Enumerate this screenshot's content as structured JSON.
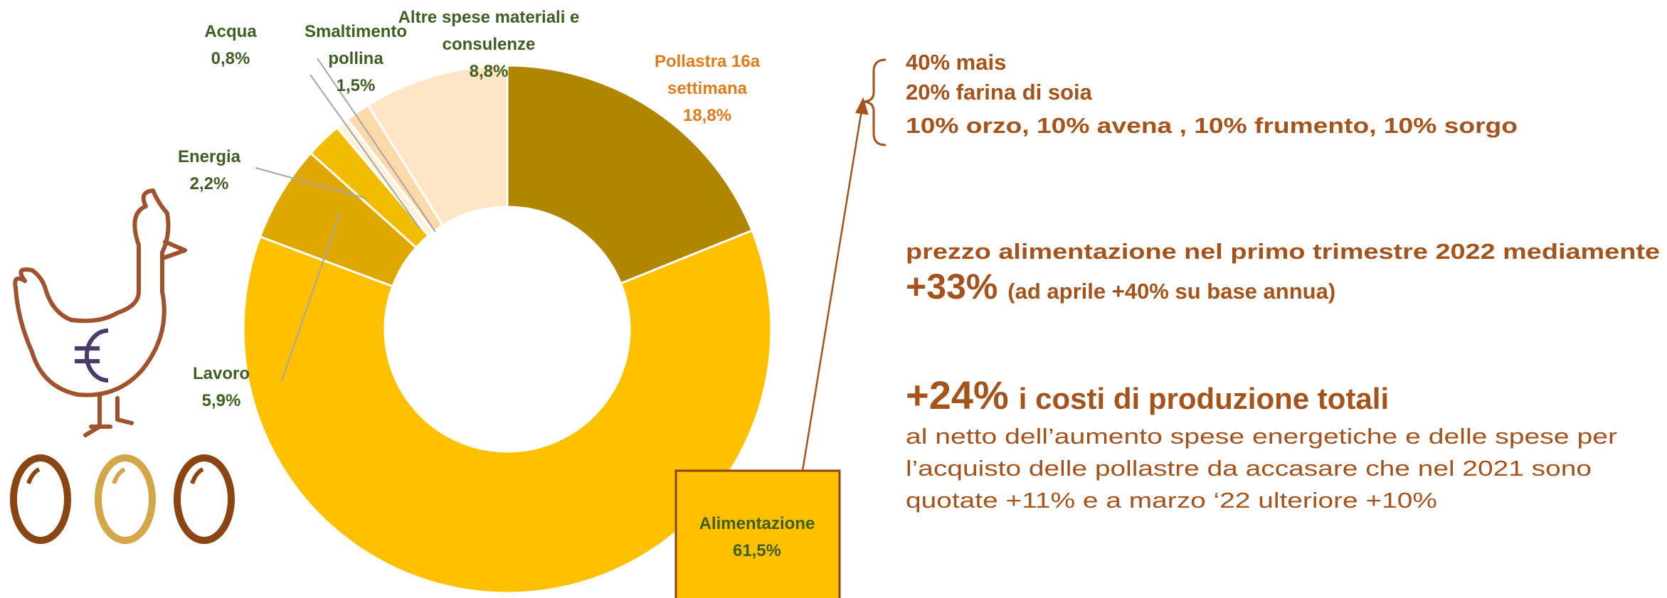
{
  "chart_data": {
    "type": "pie",
    "categories": [
      "Pollastra 16a settimana",
      "Alimentazione",
      "Lavoro",
      "Energia",
      "Acqua",
      "Smaltimento pollina",
      "Altre spese materiali e consulenze"
    ],
    "values": [
      18.8,
      61.5,
      5.9,
      2.2,
      0.8,
      1.5,
      8.8
    ],
    "value_labels": [
      "18,8%",
      "61,5%",
      "5,9%",
      "2,2%",
      "0,8%",
      "1,5%",
      "8,8%"
    ],
    "colors": [
      "#B08500",
      "#FFC000",
      "#DEA800",
      "#F2BC00",
      "#FFF2DC",
      "#FCD9A8",
      "#FDE5C5"
    ],
    "donut": true
  },
  "annotations": {
    "feed_mix": [
      "40% mais",
      "20% farina di soia",
      "10% orzo, 10% avena , 10% frumento, 10% sorgo"
    ],
    "feed_price": {
      "text": "prezzo alimentazione nel primo trimestre 2022 mediamente",
      "highlight": "+33%",
      "detail": "(ad aprile +40% su base annua)"
    },
    "total_costs": {
      "highlight": "+24%",
      "text": "i costi di produzione totali",
      "note": [
        "al netto dell’aumento spese energetiche e delle spese per",
        "l’acquisto delle pollastre da accasare che nel 2021 sono",
        "quotate +11% e a marzo ‘22 ulteriore +10%"
      ]
    }
  }
}
